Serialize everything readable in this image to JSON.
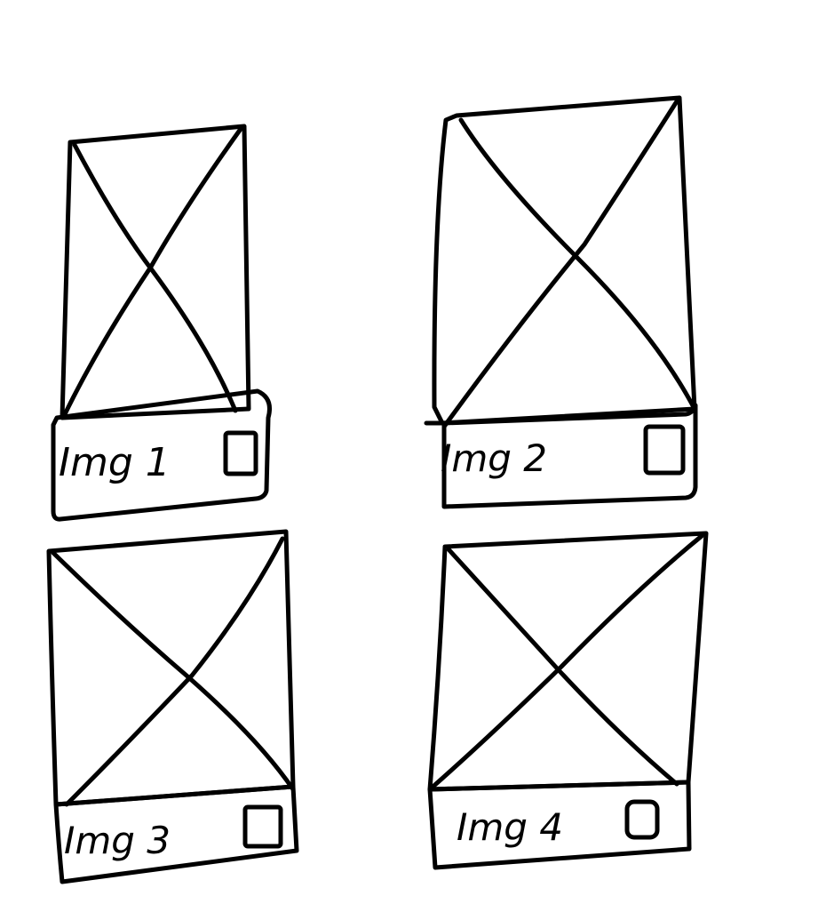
{
  "cards": [
    {
      "label": "Img 1"
    },
    {
      "label": "Img 2"
    },
    {
      "label": "Img 3"
    },
    {
      "label": "Img 4"
    }
  ],
  "colors": {
    "ink": "#000000",
    "background": "#ffffff"
  },
  "icons": {
    "image": "image-placeholder-icon",
    "checkbox": "checkbox-icon"
  }
}
